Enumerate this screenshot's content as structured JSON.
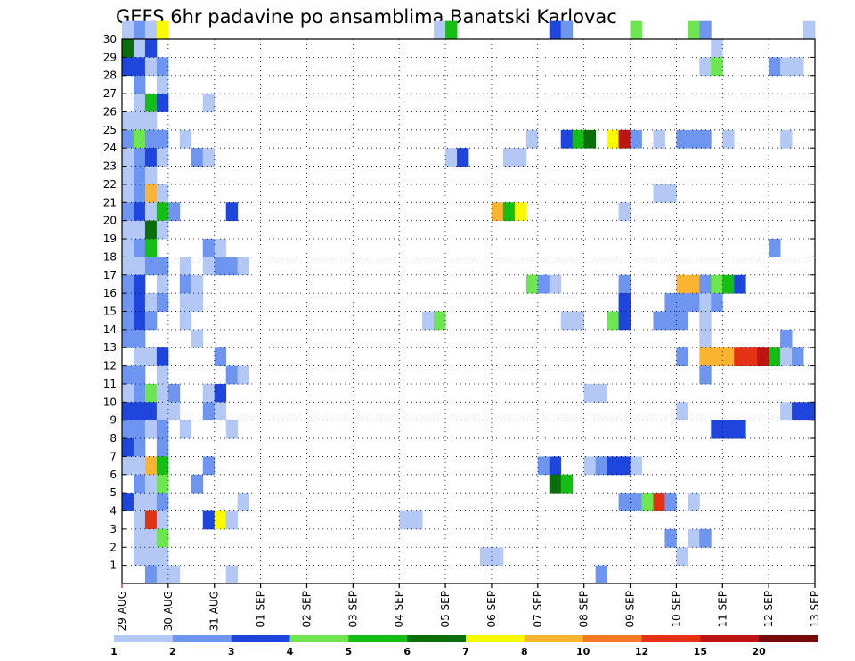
{
  "chart_data": {
    "type": "heatmap",
    "title": "GEFS 6hr padavine po ansamblima Banatski Karlovac",
    "x_labels": [
      "29 AUG",
      "30 AUG",
      "31 AUG",
      "01 SEP",
      "02 SEP",
      "03 SEP",
      "04 SEP",
      "05 SEP",
      "06 SEP",
      "07 SEP",
      "08 SEP",
      "09 SEP",
      "10 SEP",
      "11 SEP",
      "12 SEP",
      "13 SEP"
    ],
    "x_range": [
      "2020-08-29 00:00",
      "2020-09-13 00:00"
    ],
    "x_step_hours": 6,
    "y_labels": [
      "1",
      "2",
      "3",
      "4",
      "5",
      "6",
      "7",
      "8",
      "9",
      "10",
      "11",
      "12",
      "13",
      "14",
      "15",
      "16",
      "17",
      "18",
      "19",
      "20",
      "21",
      "22",
      "23",
      "24",
      "25",
      "26",
      "27",
      "28",
      "29",
      "30"
    ],
    "y_range": [
      0,
      30
    ],
    "grid": true,
    "colorbar": {
      "position": "bottom",
      "labels": [
        "1",
        "2",
        "3",
        "4",
        "5",
        "6",
        "7",
        "8",
        "10",
        "12",
        "15",
        "20"
      ],
      "bins": [
        {
          "min": 1,
          "max": 2,
          "color": "#b4c8f5"
        },
        {
          "min": 2,
          "max": 3,
          "color": "#6e96f0"
        },
        {
          "min": 3,
          "max": 4,
          "color": "#1e46dc"
        },
        {
          "min": 4,
          "max": 5,
          "color": "#6ee650"
        },
        {
          "min": 5,
          "max": 6,
          "color": "#14be14"
        },
        {
          "min": 6,
          "max": 7,
          "color": "#0a6e0a"
        },
        {
          "min": 7,
          "max": 8,
          "color": "#fafa00"
        },
        {
          "min": 8,
          "max": 10,
          "color": "#fab432"
        },
        {
          "min": 10,
          "max": 12,
          "color": "#f5781e"
        },
        {
          "min": 12,
          "max": 15,
          "color": "#e63214"
        },
        {
          "min": 15,
          "max": 20,
          "color": "#be1414"
        },
        {
          "min": 20,
          "max": 30,
          "color": "#780a0a"
        }
      ]
    },
    "cells": [
      [
        0,
        30,
        1.5
      ],
      [
        1,
        30,
        2.5
      ],
      [
        2,
        30,
        1.5
      ],
      [
        3,
        30,
        7.5
      ],
      [
        27,
        30,
        1.5
      ],
      [
        28,
        30,
        5.5
      ],
      [
        37,
        30,
        3.5
      ],
      [
        38,
        30,
        2.5
      ],
      [
        44,
        30,
        4.5
      ],
      [
        49,
        30,
        4.5
      ],
      [
        50,
        30,
        2.5
      ],
      [
        59,
        30,
        1.5
      ],
      [
        0,
        29,
        6.5
      ],
      [
        1,
        29,
        1.5
      ],
      [
        2,
        29,
        3.5
      ],
      [
        51,
        29,
        1.5
      ],
      [
        0,
        28,
        3.5
      ],
      [
        1,
        28,
        3.5
      ],
      [
        2,
        28,
        1.5
      ],
      [
        3,
        28,
        2.5
      ],
      [
        50,
        28,
        1.5
      ],
      [
        51,
        28,
        4.5
      ],
      [
        56,
        28,
        2.5
      ],
      [
        57,
        28,
        1.5
      ],
      [
        58,
        28,
        1.5
      ],
      [
        1,
        27,
        2.5
      ],
      [
        3,
        27,
        1.5
      ],
      [
        1,
        26,
        1.5
      ],
      [
        2,
        26,
        5.5
      ],
      [
        3,
        26,
        3.5
      ],
      [
        7,
        26,
        1.5
      ],
      [
        0,
        25,
        1.5
      ],
      [
        1,
        25,
        1.5
      ],
      [
        2,
        25,
        1.5
      ],
      [
        0,
        24,
        2.5
      ],
      [
        1,
        24,
        4.5
      ],
      [
        2,
        24,
        2.5
      ],
      [
        3,
        24,
        2.5
      ],
      [
        5,
        24,
        1.5
      ],
      [
        35,
        24,
        1.5
      ],
      [
        38,
        24,
        3.5
      ],
      [
        39,
        24,
        5.5
      ],
      [
        40,
        24,
        6.5
      ],
      [
        42,
        24,
        7.5
      ],
      [
        43,
        24,
        15.5
      ],
      [
        44,
        24,
        2.5
      ],
      [
        46,
        24,
        1.5
      ],
      [
        48,
        24,
        2.5
      ],
      [
        49,
        24,
        2.5
      ],
      [
        50,
        24,
        2.5
      ],
      [
        52,
        24,
        1.5
      ],
      [
        57,
        24,
        1.5
      ],
      [
        0,
        23,
        1.5
      ],
      [
        1,
        23,
        2.5
      ],
      [
        2,
        23,
        3.5
      ],
      [
        3,
        23,
        1.5
      ],
      [
        6,
        23,
        2.5
      ],
      [
        7,
        23,
        1.5
      ],
      [
        28,
        23,
        1.5
      ],
      [
        29,
        23,
        3.5
      ],
      [
        33,
        23,
        1.5
      ],
      [
        34,
        23,
        1.5
      ],
      [
        0,
        22,
        1.5
      ],
      [
        1,
        22,
        2.5
      ],
      [
        2,
        22,
        1.5
      ],
      [
        0,
        21,
        1.5
      ],
      [
        1,
        21,
        2.5
      ],
      [
        2,
        21,
        9.5
      ],
      [
        3,
        21,
        1.5
      ],
      [
        46,
        21,
        1.5
      ],
      [
        47,
        21,
        1.5
      ],
      [
        0,
        20,
        2.5
      ],
      [
        1,
        20,
        3.5
      ],
      [
        2,
        20,
        1.5
      ],
      [
        3,
        20,
        5.5
      ],
      [
        4,
        20,
        2.5
      ],
      [
        9,
        20,
        3.5
      ],
      [
        32,
        20,
        9.5
      ],
      [
        33,
        20,
        5.5
      ],
      [
        34,
        20,
        7.5
      ],
      [
        43,
        20,
        1.5
      ],
      [
        0,
        19,
        1.5
      ],
      [
        1,
        19,
        1.5
      ],
      [
        2,
        19,
        6.5
      ],
      [
        3,
        19,
        1.5
      ],
      [
        0,
        18,
        1.5
      ],
      [
        1,
        18,
        2.5
      ],
      [
        2,
        18,
        5.5
      ],
      [
        7,
        18,
        2.5
      ],
      [
        8,
        18,
        1.5
      ],
      [
        56,
        18,
        2.5
      ],
      [
        0,
        17,
        1.5
      ],
      [
        1,
        17,
        1.5
      ],
      [
        2,
        17,
        2.5
      ],
      [
        3,
        17,
        2.5
      ],
      [
        5,
        17,
        1.5
      ],
      [
        7,
        17,
        1.5
      ],
      [
        8,
        17,
        2.5
      ],
      [
        9,
        17,
        2.5
      ],
      [
        10,
        17,
        1.5
      ],
      [
        0,
        16,
        2.5
      ],
      [
        1,
        16,
        3.5
      ],
      [
        3,
        16,
        1.5
      ],
      [
        5,
        16,
        2.5
      ],
      [
        6,
        16,
        1.5
      ],
      [
        35,
        16,
        4.5
      ],
      [
        36,
        16,
        2.5
      ],
      [
        37,
        16,
        1.5
      ],
      [
        43,
        16,
        2.5
      ],
      [
        48,
        16,
        9.5
      ],
      [
        49,
        16,
        8.5
      ],
      [
        50,
        16,
        2.5
      ],
      [
        51,
        16,
        4.5
      ],
      [
        52,
        16,
        5.5
      ],
      [
        53,
        16,
        3.5
      ],
      [
        0,
        15,
        2.5
      ],
      [
        1,
        15,
        3.5
      ],
      [
        2,
        15,
        1.5
      ],
      [
        3,
        15,
        2.5
      ],
      [
        5,
        15,
        1.5
      ],
      [
        6,
        15,
        1.5
      ],
      [
        43,
        15,
        3.5
      ],
      [
        47,
        15,
        2.5
      ],
      [
        48,
        15,
        2.5
      ],
      [
        49,
        15,
        2.5
      ],
      [
        50,
        15,
        1.5
      ],
      [
        51,
        15,
        2.5
      ],
      [
        0,
        14,
        2.5
      ],
      [
        1,
        14,
        3.5
      ],
      [
        2,
        14,
        2.5
      ],
      [
        5,
        14,
        1.5
      ],
      [
        26,
        14,
        1.5
      ],
      [
        27,
        14,
        4.5
      ],
      [
        38,
        14,
        1.5
      ],
      [
        39,
        14,
        1.5
      ],
      [
        42,
        14,
        4.5
      ],
      [
        43,
        14,
        3.5
      ],
      [
        46,
        14,
        2.5
      ],
      [
        47,
        14,
        2.5
      ],
      [
        48,
        14,
        2.5
      ],
      [
        50,
        14,
        1.5
      ],
      [
        0,
        13,
        2.5
      ],
      [
        1,
        13,
        2.5
      ],
      [
        6,
        13,
        1.5
      ],
      [
        50,
        13,
        1.5
      ],
      [
        57,
        13,
        2.5
      ],
      [
        1,
        12,
        1.5
      ],
      [
        2,
        12,
        1.5
      ],
      [
        3,
        12,
        3.5
      ],
      [
        8,
        12,
        2.5
      ],
      [
        48,
        12,
        2.5
      ],
      [
        50,
        12,
        8.5
      ],
      [
        51,
        12,
        8.5
      ],
      [
        52,
        12,
        8.5
      ],
      [
        53,
        12,
        12.5
      ],
      [
        54,
        12,
        12.5
      ],
      [
        55,
        12,
        16.5
      ],
      [
        56,
        12,
        5.5
      ],
      [
        57,
        12,
        1.5
      ],
      [
        58,
        12,
        2.5
      ],
      [
        0,
        11,
        2.5
      ],
      [
        1,
        11,
        2.5
      ],
      [
        3,
        11,
        1.5
      ],
      [
        9,
        11,
        2.5
      ],
      [
        10,
        11,
        1.5
      ],
      [
        50,
        11,
        2.5
      ],
      [
        0,
        10,
        1.5
      ],
      [
        1,
        10,
        2.5
      ],
      [
        2,
        10,
        4.5
      ],
      [
        3,
        10,
        1.5
      ],
      [
        4,
        10,
        2.5
      ],
      [
        7,
        10,
        1.5
      ],
      [
        8,
        10,
        3.5
      ],
      [
        40,
        10,
        1.5
      ],
      [
        41,
        10,
        1.5
      ],
      [
        0,
        9,
        3.5
      ],
      [
        1,
        9,
        3.5
      ],
      [
        2,
        9,
        3.5
      ],
      [
        3,
        9,
        1.5
      ],
      [
        4,
        9,
        1.5
      ],
      [
        7,
        9,
        2.5
      ],
      [
        8,
        9,
        1.5
      ],
      [
        48,
        9,
        1.5
      ],
      [
        57,
        9,
        1.5
      ],
      [
        58,
        9,
        3.5
      ],
      [
        59,
        9,
        3.5
      ],
      [
        0,
        8,
        2.5
      ],
      [
        1,
        8,
        2.5
      ],
      [
        2,
        8,
        1.5
      ],
      [
        3,
        8,
        2.5
      ],
      [
        5,
        8,
        1.5
      ],
      [
        9,
        8,
        1.5
      ],
      [
        51,
        8,
        3.5
      ],
      [
        52,
        8,
        3.5
      ],
      [
        53,
        8,
        3.5
      ],
      [
        0,
        7,
        3.5
      ],
      [
        1,
        7,
        2.5
      ],
      [
        3,
        7,
        2.5
      ],
      [
        0,
        6,
        1.5
      ],
      [
        1,
        6,
        1.5
      ],
      [
        2,
        6,
        8.5
      ],
      [
        3,
        6,
        5.5
      ],
      [
        7,
        6,
        2.5
      ],
      [
        36,
        6,
        2.5
      ],
      [
        37,
        6,
        3.5
      ],
      [
        40,
        6,
        1.5
      ],
      [
        41,
        6,
        2.5
      ],
      [
        42,
        6,
        3.5
      ],
      [
        43,
        6,
        3.5
      ],
      [
        44,
        6,
        1.5
      ],
      [
        1,
        5,
        2.5
      ],
      [
        2,
        5,
        1.5
      ],
      [
        3,
        5,
        4.5
      ],
      [
        6,
        5,
        2.5
      ],
      [
        37,
        5,
        6.5
      ],
      [
        38,
        5,
        5.5
      ],
      [
        0,
        4,
        3.5
      ],
      [
        1,
        4,
        1.5
      ],
      [
        2,
        4,
        1.5
      ],
      [
        3,
        4,
        2.5
      ],
      [
        10,
        4,
        1.5
      ],
      [
        43,
        4,
        2.5
      ],
      [
        44,
        4,
        2.5
      ],
      [
        45,
        4,
        4.5
      ],
      [
        46,
        4,
        12.5
      ],
      [
        47,
        4,
        2.5
      ],
      [
        49,
        4,
        1.5
      ],
      [
        1,
        3,
        1.5
      ],
      [
        2,
        3,
        13.5
      ],
      [
        3,
        3,
        1.5
      ],
      [
        7,
        3,
        3.5
      ],
      [
        8,
        3,
        7.5
      ],
      [
        9,
        3,
        1.5
      ],
      [
        24,
        3,
        1.5
      ],
      [
        25,
        3,
        1.5
      ],
      [
        1,
        2,
        1.5
      ],
      [
        2,
        2,
        1.5
      ],
      [
        3,
        2,
        4.5
      ],
      [
        47,
        2,
        2.5
      ],
      [
        49,
        2,
        1.5
      ],
      [
        50,
        2,
        2.5
      ],
      [
        1,
        1,
        1.5
      ],
      [
        2,
        1,
        1.5
      ],
      [
        3,
        1,
        1.5
      ],
      [
        31,
        1,
        1.5
      ],
      [
        32,
        1,
        1.5
      ],
      [
        48,
        1,
        1.5
      ],
      [
        2,
        0,
        2.5
      ],
      [
        3,
        0,
        1.5
      ],
      [
        4,
        0,
        1.5
      ],
      [
        9,
        0,
        1.5
      ],
      [
        41,
        0,
        2.5
      ]
    ]
  }
}
